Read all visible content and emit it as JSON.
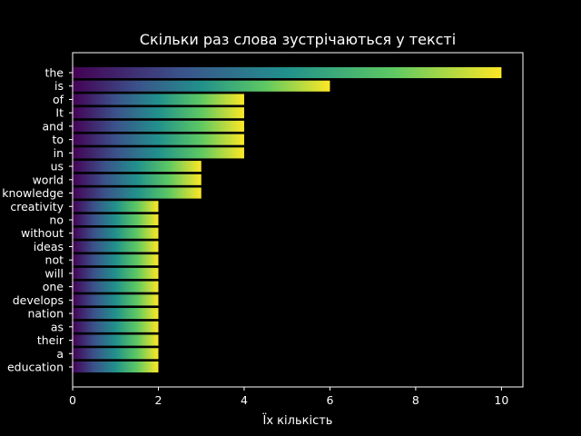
{
  "chart_data": {
    "type": "bar",
    "orientation": "horizontal",
    "title": "Скільки раз слова зустрічаються у тексті",
    "xlabel": "Їх кількість",
    "ylabel": "",
    "xlim": [
      0,
      10.5
    ],
    "xticks": [
      0,
      2,
      4,
      6,
      8,
      10
    ],
    "grid": false,
    "legend": "none",
    "bar_fill": "viridis gradient along each bar (left to right)",
    "colors": {
      "background": "#000000",
      "axes": "#ffffff",
      "text": "#ffffff",
      "gradient": [
        "#440154",
        "#3b528b",
        "#21918c",
        "#5ec962",
        "#fde725"
      ]
    },
    "categories": [
      "the",
      "is",
      "of",
      "It",
      "and",
      "to",
      "in",
      "us",
      "world",
      "knowledge",
      "creativity",
      "no",
      "without",
      "ideas",
      "not",
      "will",
      "one",
      "develops",
      "nation",
      "as",
      "their",
      "a",
      "education"
    ],
    "values": [
      10,
      6,
      4,
      4,
      4,
      4,
      4,
      3,
      3,
      3,
      2,
      2,
      2,
      2,
      2,
      2,
      2,
      2,
      2,
      2,
      2,
      2,
      2
    ]
  }
}
